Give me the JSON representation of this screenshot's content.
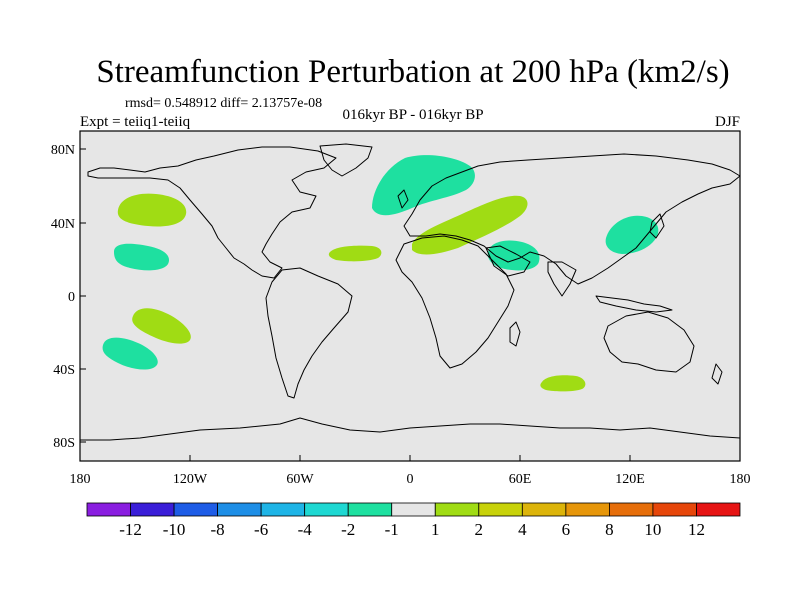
{
  "title": "Streamfunction Perturbation at 200 hPa (km2/s)",
  "stats": "rmsd= 0.548912 diff= 2.13757e-08",
  "experiment": "Expt = teiiq1-teiiq",
  "period": "016kyr BP - 016kyr BP",
  "season": "DJF",
  "x_ticks": [
    "180",
    "120W",
    "60W",
    "0",
    "60E",
    "120E",
    "180"
  ],
  "y_ticks": [
    "80N",
    "40N",
    "0",
    "40S",
    "80S"
  ],
  "colorbar": {
    "labels": [
      "-12",
      "-10",
      "-8",
      "-6",
      "-4",
      "-2",
      "-1",
      "1",
      "2",
      "4",
      "6",
      "8",
      "10",
      "12"
    ],
    "colors": [
      "#8a1ee0",
      "#3a1ed8",
      "#1e5ce6",
      "#1e8ee6",
      "#1eb4e6",
      "#1ed8d2",
      "#1ee0a0",
      "#e6e6e6",
      "#a0dc14",
      "#c8d20a",
      "#dcb40a",
      "#e6960a",
      "#e66e0a",
      "#e6460a",
      "#e61414"
    ]
  },
  "map_data": {
    "type": "contour-fill-map",
    "lon_range": [
      -180,
      180
    ],
    "lat_range": [
      -90,
      90
    ],
    "background_color": "#e6e6e6",
    "regions": [
      {
        "level": "-1 to -2",
        "color": "#1ee0a0",
        "center": [
          20,
          60
        ]
      },
      {
        "level": "-1 to -2",
        "color": "#1ee0a0",
        "center": [
          -144,
          25
        ]
      },
      {
        "level": "-1 to -2",
        "color": "#1ee0a0",
        "center": [
          -150,
          -28
        ]
      },
      {
        "level": "-1 to -2",
        "color": "#1ee0a0",
        "center": [
          60,
          25
        ]
      },
      {
        "level": "-1 to -2",
        "color": "#1ee0a0",
        "center": [
          125,
          32
        ]
      },
      {
        "level": "1 to 2",
        "color": "#a0dc14",
        "center": [
          -150,
          47
        ]
      },
      {
        "level": "1 to 2",
        "color": "#a0dc14",
        "center": [
          -140,
          -15
        ]
      },
      {
        "level": "1 to 2",
        "color": "#a0dc14",
        "center": [
          -35,
          23
        ]
      },
      {
        "level": "1 to 2",
        "color": "#a0dc14",
        "center": [
          35,
          38
        ]
      },
      {
        "level": "1 to 2",
        "color": "#a0dc14",
        "center": [
          85,
          -48
        ]
      }
    ]
  }
}
